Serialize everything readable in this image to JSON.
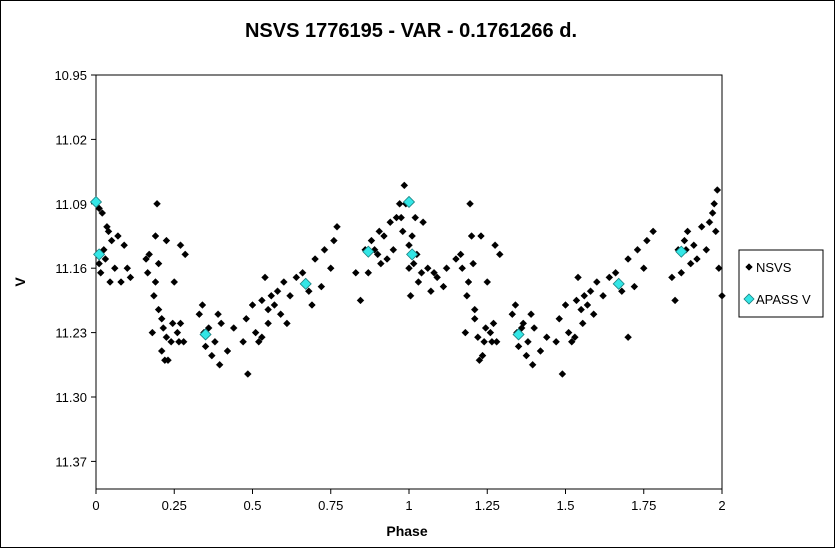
{
  "chart_data": {
    "type": "scatter",
    "title": "NSVS 1776195 - VAR - 0.1761266 d.",
    "xlabel": "Phase",
    "ylabel": "V",
    "xlim": [
      0,
      2
    ],
    "ylim": [
      10.95,
      11.4
    ],
    "y_inverted": true,
    "grid": false,
    "legend_position": "right",
    "x_ticks": [
      "0",
      "0.25",
      "0.5",
      "0.75",
      "1",
      "1.25",
      "1.5",
      "1.75",
      "2"
    ],
    "y_ticks": [
      "10.95",
      "11.02",
      "11.09",
      "11.16",
      "11.23",
      "11.30",
      "11.37"
    ],
    "colors": {
      "NSVS": "#000000",
      "APASS V": "#33e6e6"
    },
    "series": [
      {
        "name": "NSVS",
        "marker": "diamond",
        "points": [
          [
            0.01,
            11.095
          ],
          [
            0.01,
            11.155
          ],
          [
            0.015,
            11.165
          ],
          [
            0.02,
            11.1
          ],
          [
            0.025,
            11.14
          ],
          [
            0.03,
            11.15
          ],
          [
            0.035,
            11.115
          ],
          [
            0.04,
            11.12
          ],
          [
            0.045,
            11.175
          ],
          [
            0.05,
            11.13
          ],
          [
            0.06,
            11.16
          ],
          [
            0.07,
            11.125
          ],
          [
            0.08,
            11.175
          ],
          [
            0.09,
            11.135
          ],
          [
            0.1,
            11.16
          ],
          [
            0.11,
            11.17
          ],
          [
            0.16,
            11.15
          ],
          [
            0.165,
            11.165
          ],
          [
            0.17,
            11.145
          ],
          [
            0.18,
            11.23
          ],
          [
            0.185,
            11.19
          ],
          [
            0.19,
            11.175
          ],
          [
            0.19,
            11.125
          ],
          [
            0.195,
            11.09
          ],
          [
            0.2,
            11.155
          ],
          [
            0.2,
            11.205
          ],
          [
            0.21,
            11.215
          ],
          [
            0.21,
            11.25
          ],
          [
            0.215,
            11.225
          ],
          [
            0.22,
            11.26
          ],
          [
            0.225,
            11.235
          ],
          [
            0.225,
            11.13
          ],
          [
            0.23,
            11.26
          ],
          [
            0.24,
            11.24
          ],
          [
            0.245,
            11.22
          ],
          [
            0.25,
            11.175
          ],
          [
            0.26,
            11.23
          ],
          [
            0.265,
            11.24
          ],
          [
            0.27,
            11.22
          ],
          [
            0.27,
            11.135
          ],
          [
            0.28,
            11.24
          ],
          [
            0.285,
            11.145
          ],
          [
            0.33,
            11.21
          ],
          [
            0.34,
            11.2
          ],
          [
            0.345,
            11.23
          ],
          [
            0.35,
            11.245
          ],
          [
            0.36,
            11.225
          ],
          [
            0.37,
            11.255
          ],
          [
            0.38,
            11.24
          ],
          [
            0.39,
            11.21
          ],
          [
            0.395,
            11.265
          ],
          [
            0.4,
            11.22
          ],
          [
            0.42,
            11.25
          ],
          [
            0.44,
            11.225
          ],
          [
            0.47,
            11.24
          ],
          [
            0.48,
            11.215
          ],
          [
            0.485,
            11.275
          ],
          [
            0.5,
            11.2
          ],
          [
            0.51,
            11.23
          ],
          [
            0.52,
            11.24
          ],
          [
            0.53,
            11.235
          ],
          [
            0.53,
            11.195
          ],
          [
            0.54,
            11.17
          ],
          [
            0.55,
            11.205
          ],
          [
            0.55,
            11.22
          ],
          [
            0.56,
            11.19
          ],
          [
            0.57,
            11.2
          ],
          [
            0.58,
            11.185
          ],
          [
            0.59,
            11.21
          ],
          [
            0.6,
            11.175
          ],
          [
            0.61,
            11.22
          ],
          [
            0.62,
            11.19
          ],
          [
            0.64,
            11.17
          ],
          [
            0.66,
            11.165
          ],
          [
            0.68,
            11.185
          ],
          [
            0.69,
            11.2
          ],
          [
            0.7,
            11.15
          ],
          [
            0.72,
            11.18
          ],
          [
            0.73,
            11.14
          ],
          [
            0.75,
            11.16
          ],
          [
            0.76,
            11.13
          ],
          [
            0.77,
            11.115
          ],
          [
            0.83,
            11.165
          ],
          [
            0.845,
            11.195
          ],
          [
            0.86,
            11.14
          ],
          [
            0.87,
            11.165
          ],
          [
            0.88,
            11.13
          ],
          [
            0.89,
            11.14
          ],
          [
            0.9,
            11.145
          ],
          [
            0.905,
            11.12
          ],
          [
            0.91,
            11.155
          ],
          [
            0.92,
            11.125
          ],
          [
            0.93,
            11.15
          ],
          [
            0.94,
            11.11
          ],
          [
            0.95,
            11.14
          ],
          [
            0.96,
            11.105
          ],
          [
            0.97,
            11.09
          ],
          [
            0.975,
            11.105
          ],
          [
            0.98,
            11.12
          ],
          [
            0.985,
            11.07
          ],
          [
            0.99,
            11.09
          ],
          [
            1.0,
            11.135
          ],
          [
            1.0,
            11.16
          ],
          [
            1.005,
            11.19
          ],
          [
            1.01,
            11.125
          ],
          [
            1.015,
            11.155
          ],
          [
            1.02,
            11.105
          ],
          [
            1.025,
            11.145
          ],
          [
            1.03,
            11.175
          ],
          [
            1.04,
            11.165
          ],
          [
            1.045,
            11.11
          ],
          [
            1.06,
            11.16
          ],
          [
            1.07,
            11.185
          ],
          [
            1.08,
            11.165
          ],
          [
            1.09,
            11.17
          ],
          [
            1.11,
            11.18
          ],
          [
            1.12,
            11.16
          ],
          [
            1.15,
            11.15
          ],
          [
            1.165,
            11.145
          ],
          [
            1.17,
            11.16
          ],
          [
            1.18,
            11.23
          ],
          [
            1.185,
            11.19
          ],
          [
            1.19,
            11.175
          ],
          [
            1.195,
            11.09
          ],
          [
            1.2,
            11.125
          ],
          [
            1.205,
            11.155
          ],
          [
            1.21,
            11.205
          ],
          [
            1.21,
            11.215
          ],
          [
            1.22,
            11.235
          ],
          [
            1.225,
            11.26
          ],
          [
            1.23,
            11.125
          ],
          [
            1.235,
            11.255
          ],
          [
            1.24,
            11.24
          ],
          [
            1.245,
            11.225
          ],
          [
            1.25,
            11.175
          ],
          [
            1.26,
            11.23
          ],
          [
            1.265,
            11.24
          ],
          [
            1.27,
            11.22
          ],
          [
            1.275,
            11.135
          ],
          [
            1.28,
            11.24
          ],
          [
            1.29,
            11.145
          ],
          [
            1.33,
            11.21
          ],
          [
            1.34,
            11.2
          ],
          [
            1.345,
            11.23
          ],
          [
            1.35,
            11.245
          ],
          [
            1.36,
            11.225
          ],
          [
            1.365,
            11.22
          ],
          [
            1.375,
            11.255
          ],
          [
            1.38,
            11.24
          ],
          [
            1.39,
            11.21
          ],
          [
            1.395,
            11.265
          ],
          [
            1.4,
            11.225
          ],
          [
            1.42,
            11.25
          ],
          [
            1.44,
            11.235
          ],
          [
            1.47,
            11.24
          ],
          [
            1.48,
            11.215
          ],
          [
            1.49,
            11.275
          ],
          [
            1.5,
            11.2
          ],
          [
            1.51,
            11.23
          ],
          [
            1.52,
            11.24
          ],
          [
            1.53,
            11.235
          ],
          [
            1.535,
            11.195
          ],
          [
            1.54,
            11.17
          ],
          [
            1.55,
            11.205
          ],
          [
            1.555,
            11.22
          ],
          [
            1.56,
            11.19
          ],
          [
            1.57,
            11.2
          ],
          [
            1.58,
            11.185
          ],
          [
            1.59,
            11.21
          ],
          [
            1.6,
            11.175
          ],
          [
            1.62,
            11.19
          ],
          [
            1.64,
            11.17
          ],
          [
            1.66,
            11.165
          ],
          [
            1.68,
            11.185
          ],
          [
            1.7,
            11.235
          ],
          [
            1.7,
            11.15
          ],
          [
            1.72,
            11.18
          ],
          [
            1.73,
            11.14
          ],
          [
            1.75,
            11.16
          ],
          [
            1.76,
            11.13
          ],
          [
            1.78,
            11.12
          ],
          [
            1.84,
            11.17
          ],
          [
            1.85,
            11.195
          ],
          [
            1.86,
            11.14
          ],
          [
            1.87,
            11.165
          ],
          [
            1.88,
            11.13
          ],
          [
            1.885,
            11.14
          ],
          [
            1.89,
            11.12
          ],
          [
            1.9,
            11.155
          ],
          [
            1.91,
            11.135
          ],
          [
            1.92,
            11.15
          ],
          [
            1.935,
            11.115
          ],
          [
            1.95,
            11.14
          ],
          [
            1.96,
            11.11
          ],
          [
            1.97,
            11.1
          ],
          [
            1.975,
            11.09
          ],
          [
            1.98,
            11.12
          ],
          [
            1.985,
            11.075
          ],
          [
            1.99,
            11.16
          ],
          [
            2.0,
            11.19
          ]
        ]
      },
      {
        "name": "APASS V",
        "marker": "diamond",
        "points": [
          [
            0.0,
            11.088
          ],
          [
            0.01,
            11.145
          ],
          [
            0.35,
            11.232
          ],
          [
            0.67,
            11.177
          ],
          [
            0.87,
            11.142
          ],
          [
            1.0,
            11.088
          ],
          [
            1.01,
            11.145
          ],
          [
            1.35,
            11.232
          ],
          [
            1.67,
            11.177
          ],
          [
            1.87,
            11.142
          ]
        ]
      }
    ]
  }
}
